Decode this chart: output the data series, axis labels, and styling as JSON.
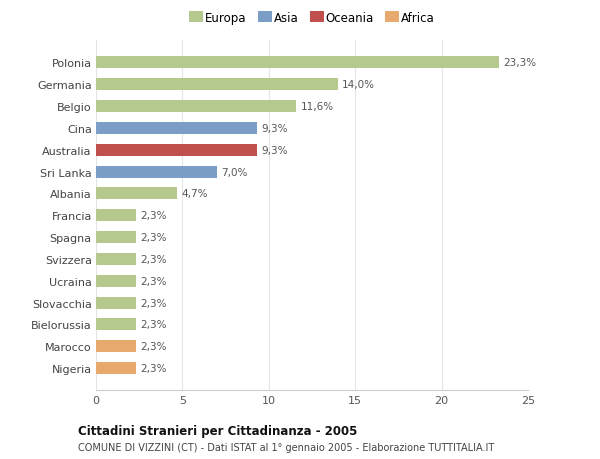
{
  "categories": [
    "Polonia",
    "Germania",
    "Belgio",
    "Cina",
    "Australia",
    "Sri Lanka",
    "Albania",
    "Francia",
    "Spagna",
    "Svizzera",
    "Ucraina",
    "Slovacchia",
    "Bielorussia",
    "Marocco",
    "Nigeria"
  ],
  "values": [
    23.3,
    14.0,
    11.6,
    9.3,
    9.3,
    7.0,
    4.7,
    2.3,
    2.3,
    2.3,
    2.3,
    2.3,
    2.3,
    2.3,
    2.3
  ],
  "labels": [
    "23,3%",
    "14,0%",
    "11,6%",
    "9,3%",
    "9,3%",
    "7,0%",
    "4,7%",
    "2,3%",
    "2,3%",
    "2,3%",
    "2,3%",
    "2,3%",
    "2,3%",
    "2,3%",
    "2,3%"
  ],
  "colors": [
    "#b5c98e",
    "#b5c98e",
    "#b5c98e",
    "#7b9ec7",
    "#c0504d",
    "#7b9ec7",
    "#b5c98e",
    "#b5c98e",
    "#b5c98e",
    "#b5c98e",
    "#b5c98e",
    "#b5c98e",
    "#b5c98e",
    "#e8a96e",
    "#e8a96e"
  ],
  "legend_labels": [
    "Europa",
    "Asia",
    "Oceania",
    "Africa"
  ],
  "legend_colors": [
    "#b5c98e",
    "#7b9ec7",
    "#c0504d",
    "#e8a96e"
  ],
  "title": "Cittadini Stranieri per Cittadinanza - 2005",
  "subtitle": "COMUNE DI VIZZINI (CT) - Dati ISTAT al 1° gennaio 2005 - Elaborazione TUTTITALIA.IT",
  "xlim": [
    0,
    25
  ],
  "xticks": [
    0,
    5,
    10,
    15,
    20,
    25
  ],
  "background_color": "#ffffff",
  "grid_color": "#e5e5e5"
}
